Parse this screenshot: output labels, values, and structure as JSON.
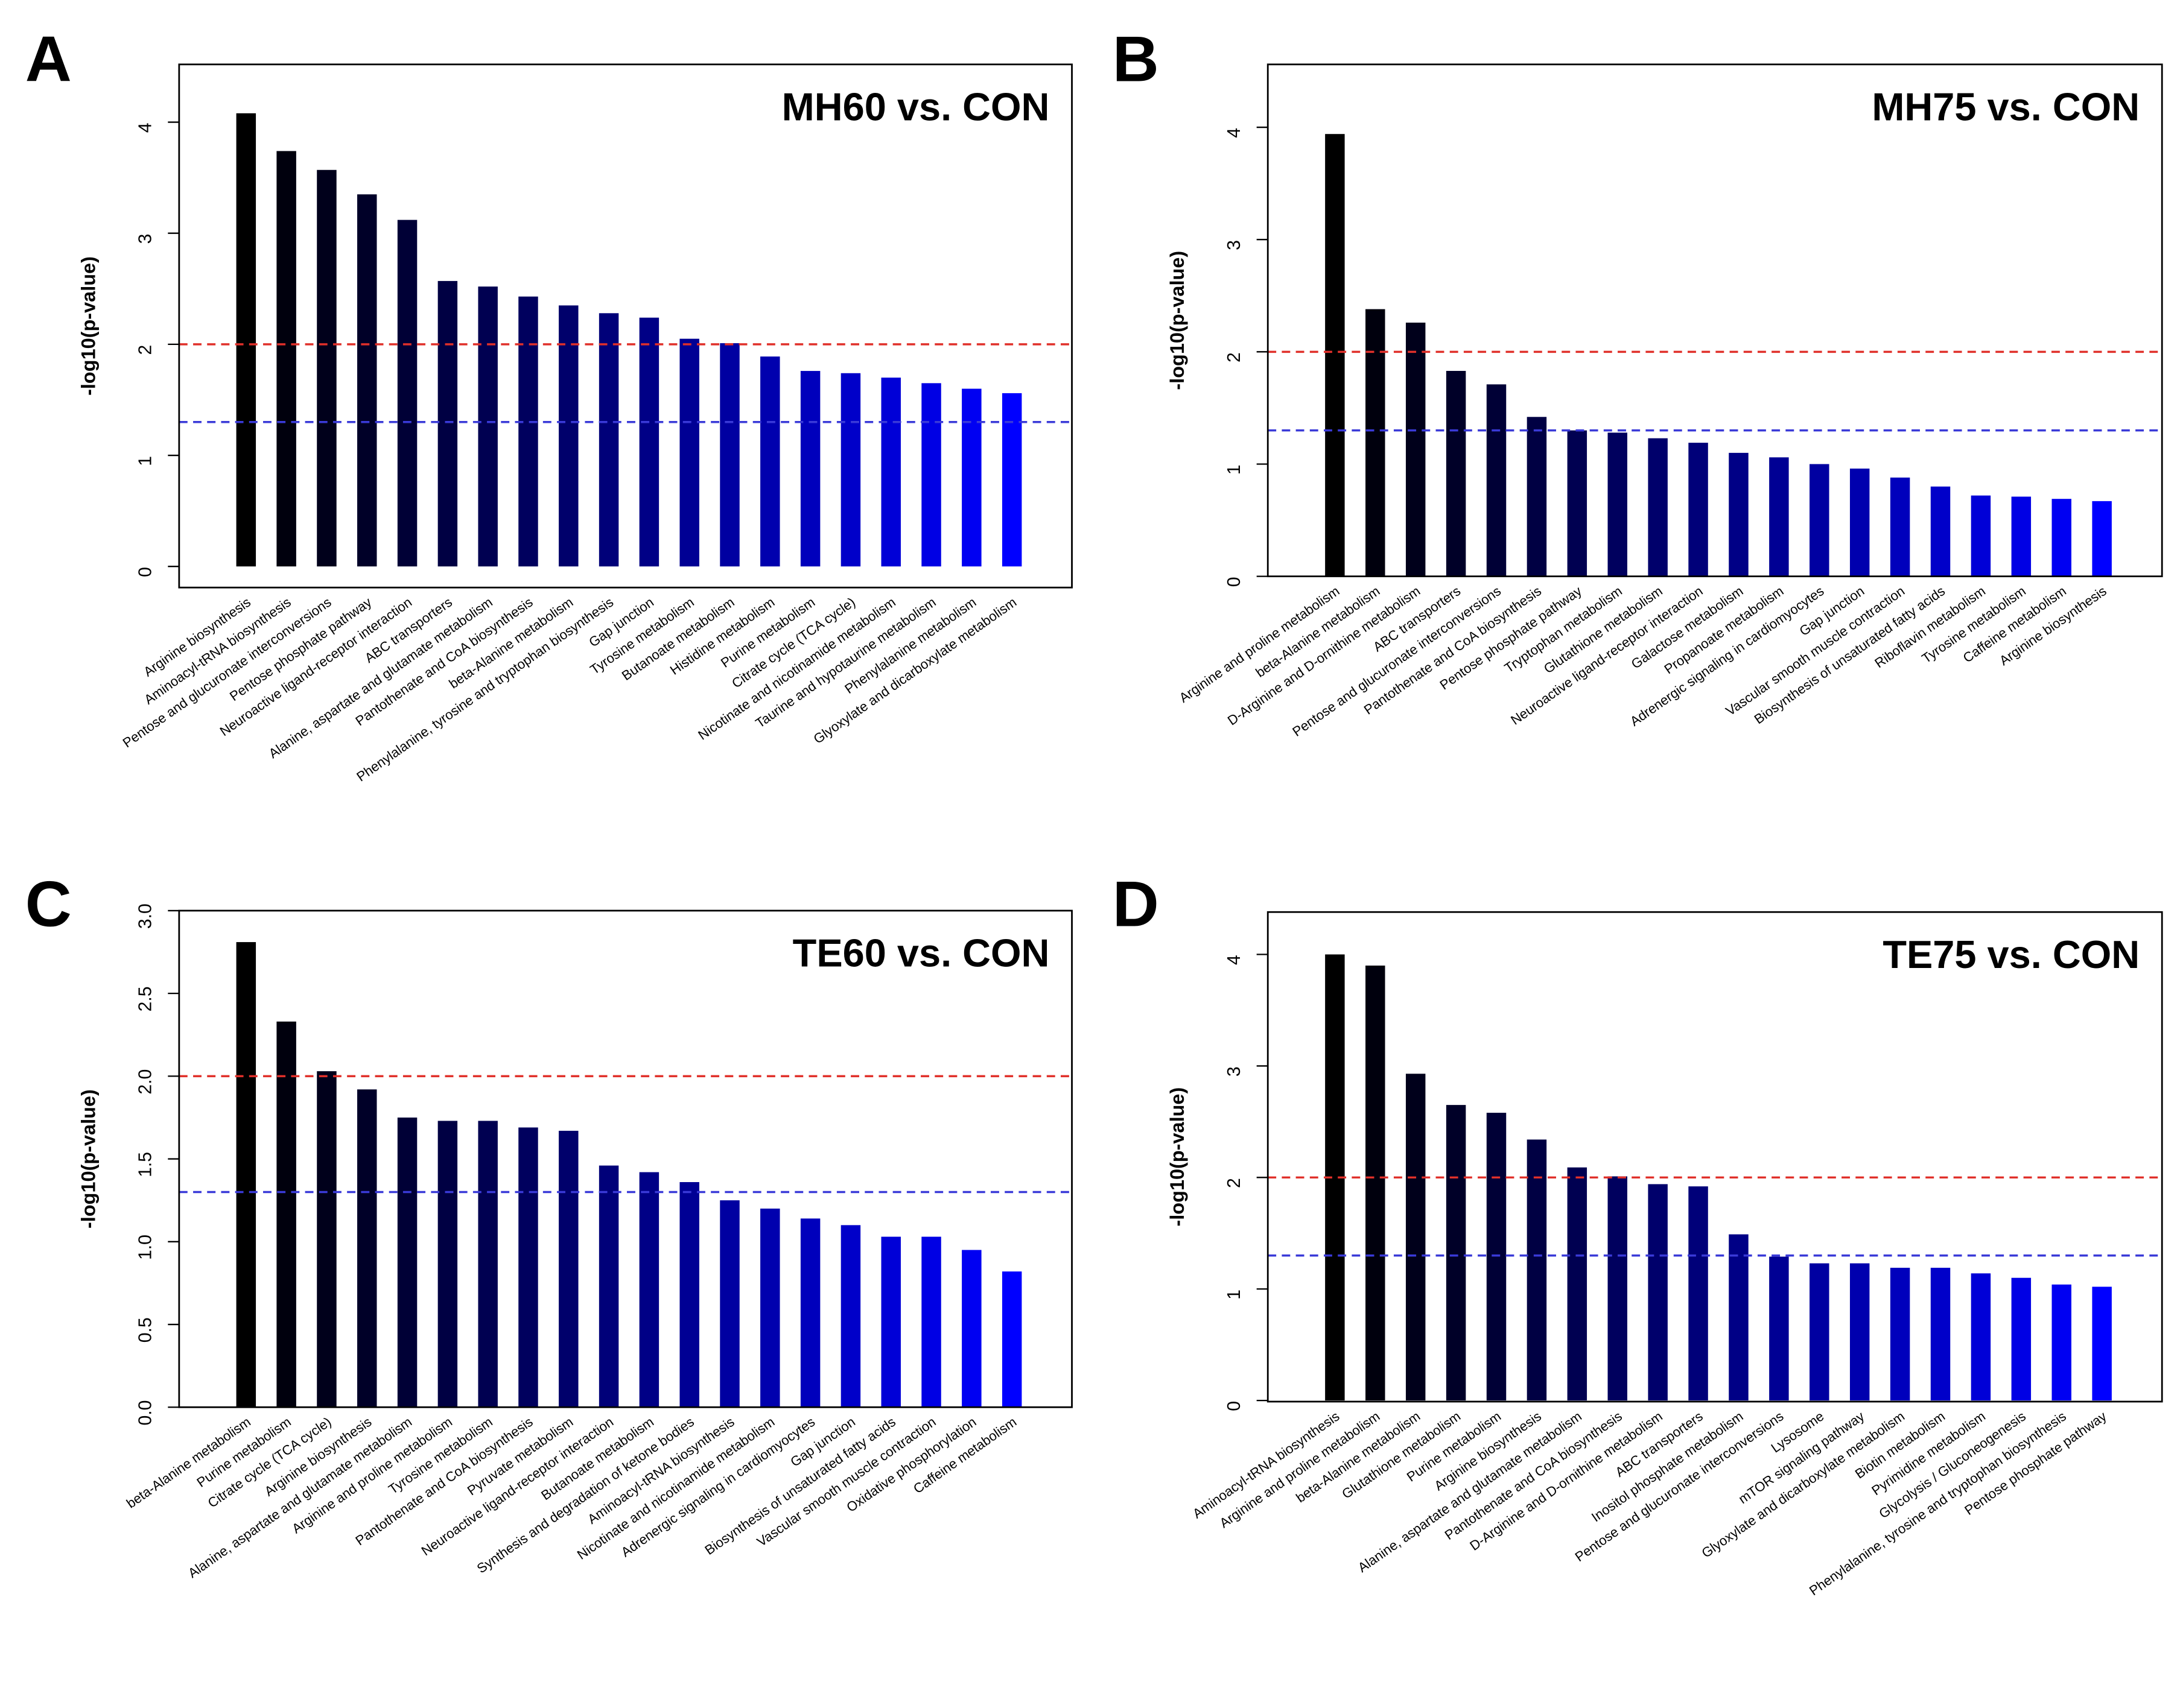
{
  "chart_data": [
    {
      "type": "bar",
      "panel": "A",
      "title": "MH60 vs. CON",
      "ylabel": "-log10(p-value)",
      "categories": [
        "Arginine biosynthesis",
        "Aminoacyl-tRNA biosynthesis",
        "Pentose and glucuronate interconversions",
        "Pentose phosphate pathway",
        "Neuroactive ligand-receptor interaction",
        "ABC transporters",
        "Alanine, aspartate and glutamate metabolism",
        "Pantothenate and CoA biosynthesis",
        "beta-Alanine metabolism",
        "Phenylalanine, tyrosine and tryptophan biosynthesis",
        "Gap junction",
        "Tyrosine metabolism",
        "Butanoate metabolism",
        "Histidine metabolism",
        "Purine metabolism",
        "Citrate cycle (TCA cycle)",
        "Nicotinate and nicotinamide metabolism",
        "Taurine and hypotaurine metabolism",
        "Phenylalanine metabolism",
        "Glyoxylate and dicarboxylate metabolism"
      ],
      "values": [
        4.08,
        3.74,
        3.57,
        3.35,
        3.12,
        2.57,
        2.52,
        2.43,
        2.35,
        2.28,
        2.24,
        2.05,
        2.01,
        1.89,
        1.76,
        1.74,
        1.7,
        1.65,
        1.6,
        1.56
      ],
      "color_gradient": [
        "#000000",
        "#0000ff"
      ],
      "reference_lines": [
        {
          "value": 2,
          "color": "#e0302a"
        },
        {
          "value": 1.3,
          "color": "#3a3ad8"
        }
      ],
      "ylim": [
        -0.19,
        4.52
      ],
      "yticks": [
        0,
        1,
        2,
        3,
        4
      ]
    },
    {
      "type": "bar",
      "panel": "B",
      "title": "MH75 vs. CON",
      "ylabel": "-log10(p-value)",
      "categories": [
        "Arginine and proline metabolism",
        "beta-Alanine metabolism",
        "D-Arginine and D-ornithine metabolism",
        "ABC transporters",
        "Pentose and glucuronate interconversions",
        "Pantothenate and CoA biosynthesis",
        "Pentose phosphate pathway",
        "Tryptophan metabolism",
        "Glutathione metabolism",
        "Neuroactive ligand-receptor interaction",
        "Galactose metabolism",
        "Propanoate metabolism",
        "Adrenergic signaling in cardiomyocytes",
        "Gap junction",
        "Vascular smooth muscle contraction",
        "Biosynthesis of unsaturated fatty acids",
        "Riboflavin metabolism",
        "Tyrosine metabolism",
        "Caffeine metabolism",
        "Arginine biosynthesis"
      ],
      "values": [
        3.94,
        2.38,
        2.26,
        1.83,
        1.71,
        1.42,
        1.3,
        1.28,
        1.23,
        1.19,
        1.1,
        1.06,
        1.0,
        0.96,
        0.88,
        0.8,
        0.72,
        0.71,
        0.69,
        0.67
      ],
      "color_gradient": [
        "#000000",
        "#0000ff"
      ],
      "reference_lines": [
        {
          "value": 2,
          "color": "#e0302a"
        },
        {
          "value": 1.3,
          "color": "#3a3ad8"
        }
      ],
      "ylim": [
        0,
        4.56
      ],
      "yticks": [
        0,
        1,
        2,
        3,
        4
      ]
    },
    {
      "type": "bar",
      "panel": "C",
      "title": "TE60 vs. CON",
      "ylabel": "-log10(p-value)",
      "categories": [
        "beta-Alanine metabolism",
        "Purine metabolism",
        "Citrate cycle (TCA cycle)",
        "Arginine biosynthesis",
        "Alanine, aspartate and glutamate metabolism",
        "Arginine and proline metabolism",
        "Tyrosine metabolism",
        "Pantothenate and CoA biosynthesis",
        "Pyruvate metabolism",
        "Neuroactive ligand-receptor interaction",
        "Butanoate metabolism",
        "Synthesis and degradation of ketone bodies",
        "Aminoacyl-tRNA biosynthesis",
        "Nicotinate and nicotinamide metabolism",
        "Adrenergic signaling in cardiomyocytes",
        "Gap junction",
        "Biosynthesis of unsaturated fatty acids",
        "Vascular smooth muscle contraction",
        "Oxidative phosphorylation",
        "Caffeine metabolism"
      ],
      "values": [
        2.81,
        2.33,
        2.03,
        1.92,
        1.75,
        1.73,
        1.73,
        1.69,
        1.67,
        1.46,
        1.42,
        1.36,
        1.25,
        1.2,
        1.14,
        1.1,
        1.03,
        1.03,
        0.95,
        0.82
      ],
      "color_gradient": [
        "#000000",
        "#0000ff"
      ],
      "reference_lines": [
        {
          "value": 2,
          "color": "#e0302a"
        },
        {
          "value": 1.3,
          "color": "#3a3ad8"
        }
      ],
      "ylim": [
        0,
        3
      ],
      "yticks": [
        {
          "value": 0,
          "label": "0.0"
        },
        0.5,
        {
          "value": 1,
          "label": "1.0"
        },
        1.5,
        {
          "value": 2,
          "label": "2.0"
        },
        2.5,
        {
          "value": 3,
          "label": "3.0"
        }
      ]
    },
    {
      "type": "bar",
      "panel": "D",
      "title": "TE75 vs. CON",
      "ylabel": "-log10(p-value)",
      "categories": [
        "Aminoacyl-tRNA biosynthesis",
        "Arginine and proline metabolism",
        "beta-Alanine metabolism",
        "Glutathione metabolism",
        "Purine metabolism",
        "Arginine biosynthesis",
        "Alanine, aspartate and glutamate metabolism",
        "Pantothenate and CoA biosynthesis",
        "D-Arginine and D-ornithine metabolism",
        "ABC transporters",
        "Inositol phosphate metabolism",
        "Pentose and glucuronate interconversions",
        "Lysosome",
        "mTOR signaling pathway",
        "Glyoxylate and dicarboxylate metabolism",
        "Biotin metabolism",
        "Pyrimidine metabolism",
        "Glycolysis / Gluconeogenesis",
        "Phenylalanine, tyrosine and tryptophan biosynthesis",
        "Pentose phosphate pathway"
      ],
      "values": [
        4.0,
        3.9,
        2.93,
        2.65,
        2.58,
        2.34,
        2.09,
        2.01,
        1.94,
        1.92,
        1.49,
        1.29,
        1.23,
        1.23,
        1.19,
        1.19,
        1.14,
        1.1,
        1.04,
        1.02
      ],
      "color_gradient": [
        "#000000",
        "#0000ff"
      ],
      "reference_lines": [
        {
          "value": 2,
          "color": "#e0302a"
        },
        {
          "value": 1.3,
          "color": "#3a3ad8"
        }
      ],
      "ylim": [
        -0.01,
        4.38
      ],
      "yticks": [
        0,
        1,
        2,
        3,
        4
      ]
    }
  ]
}
